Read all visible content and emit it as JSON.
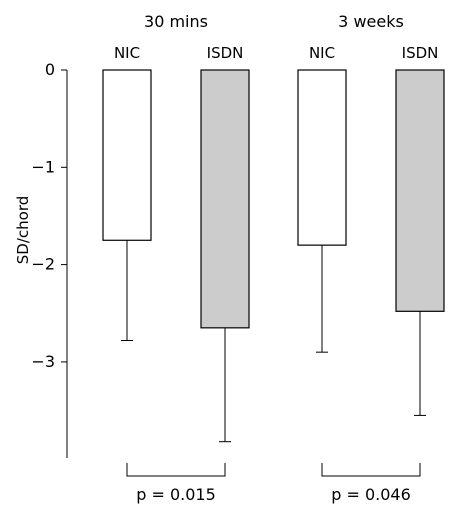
{
  "chart_data": {
    "type": "bar",
    "ylabel": "SD/chord",
    "ylim": [
      -4,
      0
    ],
    "y_ticks": [
      0,
      -1,
      -2,
      -3
    ],
    "groups": [
      {
        "label": "30 mins",
        "p_value_label": "p = 0.015",
        "bars": [
          {
            "name": "NIC",
            "value": -1.75,
            "error_low": -2.78,
            "fill": "#ffffff"
          },
          {
            "name": "ISDN",
            "value": -2.65,
            "error_low": -3.82,
            "fill": "#cccccc"
          }
        ]
      },
      {
        "label": "3 weeks",
        "p_value_label": "p = 0.046",
        "bars": [
          {
            "name": "NIC",
            "value": -1.8,
            "error_low": -2.9,
            "fill": "#ffffff"
          },
          {
            "name": "ISDN",
            "value": -2.48,
            "error_low": -3.55,
            "fill": "#cccccc"
          }
        ]
      }
    ],
    "grid": false,
    "legend": "none"
  }
}
